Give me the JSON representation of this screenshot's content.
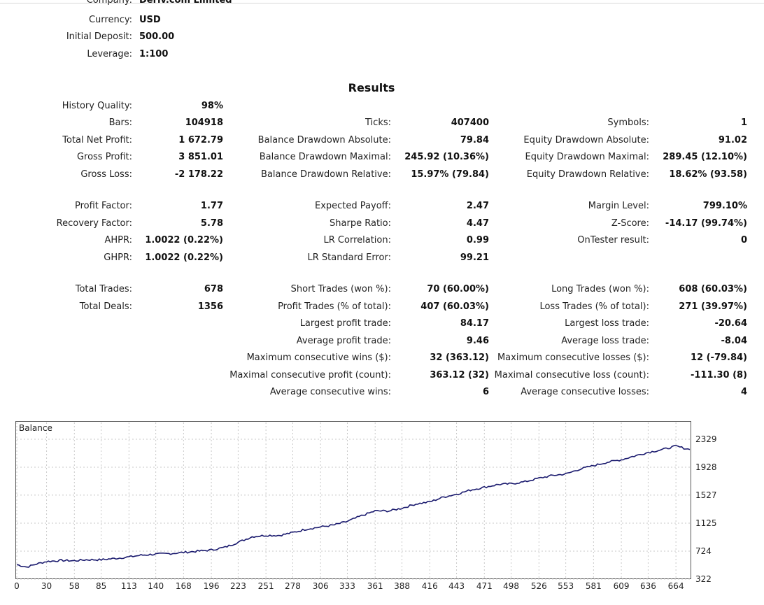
{
  "header": {
    "company_label": "Company:",
    "company_value": "Deriv.com Limited",
    "currency_label": "Currency:",
    "currency_value": "USD",
    "deposit_label": "Initial Deposit:",
    "deposit_value": "500.00",
    "leverage_label": "Leverage:",
    "leverage_value": "1:100"
  },
  "results_title": "Results",
  "col1": [
    {
      "label": "History Quality:",
      "value": "98%"
    },
    {
      "label": "Bars:",
      "value": "104918"
    },
    {
      "label": "Total Net Profit:",
      "value": "1 672.79"
    },
    {
      "label": "Gross Profit:",
      "value": "3 851.01"
    },
    {
      "label": "Gross Loss:",
      "value": "-2 178.22"
    },
    {
      "label": "Profit Factor:",
      "value": "1.77"
    },
    {
      "label": "Recovery Factor:",
      "value": "5.78"
    },
    {
      "label": "AHPR:",
      "value": "1.0022 (0.22%)"
    },
    {
      "label": "GHPR:",
      "value": "1.0022 (0.22%)"
    },
    {
      "label": "Total Trades:",
      "value": "678"
    },
    {
      "label": "Total Deals:",
      "value": "1356"
    }
  ],
  "col2": [
    {
      "label": "Ticks:",
      "value": "407400"
    },
    {
      "label": "Balance Drawdown Absolute:",
      "value": "79.84"
    },
    {
      "label": "Balance Drawdown Maximal:",
      "value": "245.92 (10.36%)"
    },
    {
      "label": "Balance Drawdown Relative:",
      "value": "15.97% (79.84)"
    },
    {
      "label": "Expected Payoff:",
      "value": "2.47"
    },
    {
      "label": "Sharpe Ratio:",
      "value": "4.47"
    },
    {
      "label": "LR Correlation:",
      "value": "0.99"
    },
    {
      "label": "LR Standard Error:",
      "value": "99.21"
    },
    {
      "label": "Short Trades (won %):",
      "value": "70 (60.00%)"
    },
    {
      "label": "Profit Trades (% of total):",
      "value": "407 (60.03%)"
    },
    {
      "label": "Largest profit trade:",
      "value": "84.17"
    },
    {
      "label": "Average profit trade:",
      "value": "9.46"
    },
    {
      "label": "Maximum consecutive wins ($):",
      "value": "32 (363.12)"
    },
    {
      "label": "Maximal consecutive profit (count):",
      "value": "363.12 (32)"
    },
    {
      "label": "Average consecutive wins:",
      "value": "6"
    }
  ],
  "col3": [
    {
      "label": "Symbols:",
      "value": "1"
    },
    {
      "label": "Equity Drawdown Absolute:",
      "value": "91.02"
    },
    {
      "label": "Equity Drawdown Maximal:",
      "value": "289.45 (12.10%)"
    },
    {
      "label": "Equity Drawdown Relative:",
      "value": "18.62% (93.58)"
    },
    {
      "label": "Margin Level:",
      "value": "799.10%"
    },
    {
      "label": "Z-Score:",
      "value": "-14.17 (99.74%)"
    },
    {
      "label": "OnTester result:",
      "value": "0"
    },
    {
      "label": "Long Trades (won %):",
      "value": "608 (60.03%)"
    },
    {
      "label": "Loss Trades (% of total):",
      "value": "271 (39.97%)"
    },
    {
      "label": "Largest loss trade:",
      "value": "-20.64"
    },
    {
      "label": "Average loss trade:",
      "value": "-8.04"
    },
    {
      "label": "Maximum consecutive losses ($):",
      "value": "12 (-79.84)"
    },
    {
      "label": "Maximal consecutive loss (count):",
      "value": "-111.30 (8)"
    },
    {
      "label": "Average consecutive losses:",
      "value": "4"
    }
  ],
  "chart_data": {
    "type": "line",
    "title": "Balance",
    "x_ticks": [
      "0",
      "30",
      "58",
      "85",
      "113",
      "140",
      "168",
      "196",
      "223",
      "251",
      "278",
      "306",
      "333",
      "361",
      "388",
      "416",
      "443",
      "471",
      "498",
      "526",
      "553",
      "581",
      "609",
      "636",
      "664"
    ],
    "y_ticks": [
      "2329",
      "1928",
      "1527",
      "1125",
      "724",
      "322"
    ],
    "xlim": [
      0,
      678
    ],
    "ylim": [
      322,
      2329
    ],
    "grid": true,
    "line_color": "#1a1a6e",
    "series": [
      {
        "x": [
          0,
          10,
          20,
          30,
          45,
          58,
          70,
          85,
          100,
          113,
          125,
          140,
          155,
          168,
          180,
          196,
          210,
          223,
          237,
          251,
          265,
          278,
          292,
          306,
          320,
          333,
          347,
          361,
          375,
          388,
          402,
          416,
          430,
          443,
          457,
          471,
          485,
          498,
          512,
          526,
          540,
          553,
          567,
          581,
          595,
          609,
          620,
          636,
          650,
          664,
          678
        ],
        "values": [
          530,
          495,
          540,
          575,
          590,
          585,
          600,
          600,
          620,
          640,
          665,
          680,
          690,
          705,
          720,
          740,
          780,
          850,
          930,
          950,
          950,
          990,
          1040,
          1070,
          1100,
          1150,
          1230,
          1300,
          1300,
          1340,
          1400,
          1430,
          1500,
          1540,
          1600,
          1640,
          1680,
          1690,
          1720,
          1770,
          1810,
          1830,
          1900,
          1950,
          2000,
          2035,
          2080,
          2140,
          2180,
          2230,
          2180
        ]
      }
    ]
  }
}
